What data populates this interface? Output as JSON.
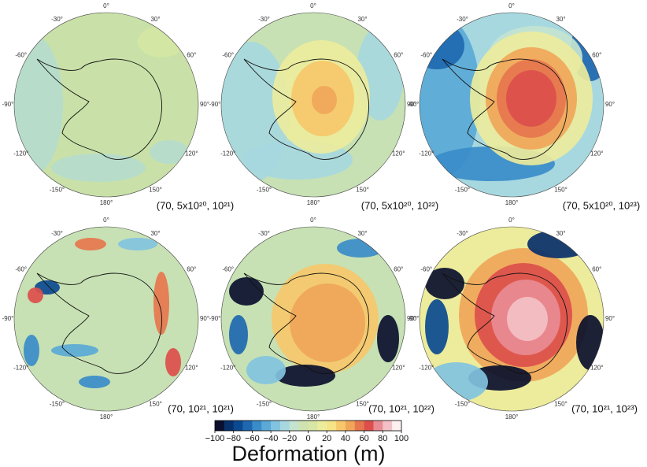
{
  "chart_data": {
    "type": "map",
    "panels": [
      {
        "label": "(70, 5x10²⁰, 10²¹)"
      },
      {
        "label": "(70, 5x10²⁰, 10²²)"
      },
      {
        "label": "(70, 5x10²⁰, 10²³)"
      },
      {
        "label": "(70, 10²¹, 10²¹)"
      },
      {
        "label": "(70, 10²¹, 10²²)"
      },
      {
        "label": "(70, 10²¹, 10²³)"
      }
    ],
    "graticule_labels": [
      {
        "value": 0,
        "label": "0°"
      },
      {
        "value": 30,
        "label": "30°"
      },
      {
        "value": 60,
        "label": "60°"
      },
      {
        "value": 90,
        "label": "90°"
      },
      {
        "value": 120,
        "label": "120°"
      },
      {
        "value": 150,
        "label": "150°"
      },
      {
        "value": 180,
        "label": "180°"
      },
      {
        "value": -150,
        "label": "-150°"
      },
      {
        "value": -120,
        "label": "-120°"
      },
      {
        "value": -90,
        "label": "-90°"
      },
      {
        "value": -60,
        "label": "-60°"
      },
      {
        "value": -30,
        "label": "-30°"
      }
    ],
    "colorbar": {
      "label": "Deformation (m)",
      "clim": [
        -100,
        100
      ],
      "ticks": [
        {
          "value": -100,
          "label": "−100"
        },
        {
          "value": -80,
          "label": "−80"
        },
        {
          "value": -60,
          "label": "−60"
        },
        {
          "value": -40,
          "label": "−40"
        },
        {
          "value": -20,
          "label": "−20"
        },
        0,
        20,
        40,
        60,
        80,
        100
      ],
      "colors": [
        "#0a0f2e",
        "#08306b",
        "#0b4a91",
        "#1f68b0",
        "#3a8cc9",
        "#5aa9d6",
        "#82c3df",
        "#a7d8e0",
        "#c4e4d0",
        "#cfe3b0",
        "#d8e6a6",
        "#ecec9c",
        "#f6e386",
        "#f6c86b",
        "#f0a659",
        "#e6764e",
        "#dc4f4c",
        "#e88b93",
        "#f2c0c6",
        "#fdf0f0"
      ]
    }
  }
}
